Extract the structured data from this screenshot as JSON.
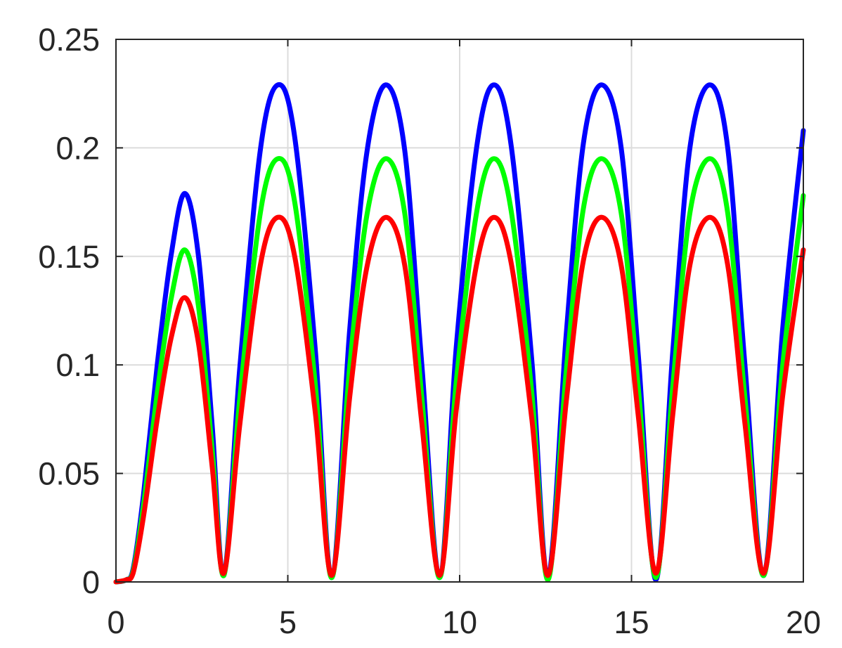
{
  "chart_data": {
    "type": "line",
    "title": "",
    "xlabel": "",
    "ylabel": "",
    "xlim": [
      0,
      20
    ],
    "ylim": [
      0,
      0.25
    ],
    "grid": true,
    "legend": "none",
    "x_ticks": [
      "0",
      "5",
      "10",
      "15",
      "20"
    ],
    "y_ticks": [
      "0",
      "0.05",
      "0.1",
      "0.15",
      "0.2",
      "0.25"
    ],
    "x": [
      0,
      0.3,
      0.5,
      0.8,
      1.2,
      1.6,
      2.0,
      2.4,
      2.8,
      3.14,
      3.6,
      4.2,
      4.71,
      5.2,
      5.8,
      6.28,
      6.8,
      7.3,
      7.85,
      8.4,
      8.9,
      9.42,
      9.9,
      10.5,
      11.0,
      11.5,
      12.1,
      12.57,
      13.1,
      13.6,
      14.14,
      14.7,
      15.2,
      15.71,
      16.2,
      16.7,
      17.28,
      17.8,
      18.3,
      18.85,
      19.4,
      20.0
    ],
    "series": [
      {
        "color": "#0000ff",
        "values": [
          0,
          0.001,
          0.006,
          0.04,
          0.1,
          0.15,
          0.179,
          0.15,
          0.072,
          0.003,
          0.098,
          0.199,
          0.229,
          0.205,
          0.107,
          0.002,
          0.116,
          0.198,
          0.229,
          0.199,
          0.1,
          0.002,
          0.108,
          0.201,
          0.229,
          0.201,
          0.102,
          0.002,
          0.114,
          0.202,
          0.229,
          0.2,
          0.104,
          0.001,
          0.106,
          0.2,
          0.229,
          0.2,
          0.1,
          0.003,
          0.117,
          0.208
        ]
      },
      {
        "color": "#00ff00",
        "values": [
          0,
          0.001,
          0.005,
          0.035,
          0.087,
          0.13,
          0.153,
          0.127,
          0.061,
          0.003,
          0.084,
          0.17,
          0.195,
          0.175,
          0.091,
          0.002,
          0.099,
          0.169,
          0.195,
          0.17,
          0.085,
          0.002,
          0.092,
          0.171,
          0.195,
          0.171,
          0.087,
          0.001,
          0.097,
          0.172,
          0.195,
          0.17,
          0.089,
          0.002,
          0.09,
          0.17,
          0.195,
          0.17,
          0.085,
          0.003,
          0.1,
          0.178
        ]
      },
      {
        "color": "#ff0000",
        "values": [
          0,
          0.001,
          0.004,
          0.03,
          0.075,
          0.112,
          0.131,
          0.11,
          0.053,
          0.004,
          0.072,
          0.146,
          0.168,
          0.15,
          0.078,
          0.003,
          0.085,
          0.145,
          0.168,
          0.146,
          0.073,
          0.003,
          0.079,
          0.147,
          0.168,
          0.147,
          0.075,
          0.003,
          0.083,
          0.148,
          0.168,
          0.146,
          0.076,
          0.004,
          0.077,
          0.146,
          0.168,
          0.146,
          0.073,
          0.004,
          0.086,
          0.153
        ]
      }
    ]
  }
}
